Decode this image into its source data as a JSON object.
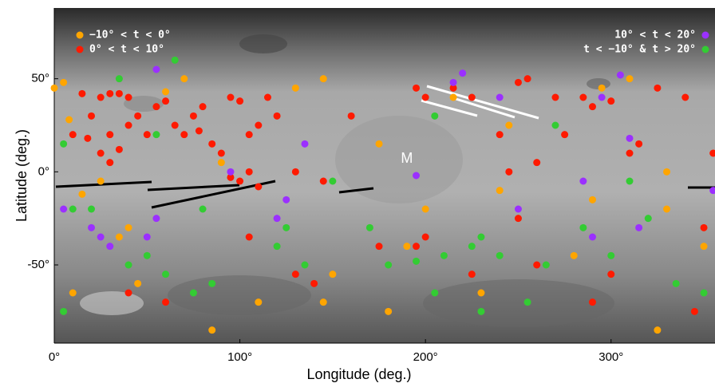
{
  "chart_data": {
    "type": "scatter",
    "xlabel": "Longitude (deg.)",
    "ylabel": "Latitude (deg.)",
    "annotation": "M",
    "annotation_x": 190,
    "annotation_y": 7,
    "xlim": [
      0,
      356
    ],
    "ylim": [
      -92,
      88
    ],
    "xticks": [
      {
        "value": 0,
        "label": "0°"
      },
      {
        "value": 100,
        "label": "100°"
      },
      {
        "value": 200,
        "label": "200°"
      },
      {
        "value": 300,
        "label": "300°"
      }
    ],
    "yticks": [
      {
        "value": 50,
        "label": "50°"
      },
      {
        "value": 0,
        "label": "0°"
      },
      {
        "value": -50,
        "label": "-50°"
      }
    ],
    "series": [
      {
        "name": "−10° < t < 0°",
        "color": "#ffa500",
        "legend": "upper left",
        "x": [
          5,
          0,
          8,
          15,
          25,
          35,
          40,
          60,
          70,
          90,
          130,
          145,
          175,
          190,
          200,
          215,
          240,
          245,
          290,
          295,
          310,
          330,
          350,
          10,
          45,
          110,
          150,
          180,
          230,
          280,
          325,
          85,
          145,
          330
        ],
        "values": [
          48,
          45,
          28,
          -12,
          -5,
          -35,
          -30,
          43,
          50,
          5,
          45,
          50,
          15,
          -40,
          -20,
          40,
          -10,
          25,
          -15,
          45,
          50,
          0,
          -40,
          -65,
          -60,
          -70,
          -55,
          -75,
          -65,
          -45,
          -85,
          -85,
          -70,
          -20
        ]
      },
      {
        "name": "0° < t < 10°",
        "color": "#ff1a00",
        "legend": "upper left",
        "x": [
          15,
          25,
          30,
          35,
          40,
          45,
          20,
          10,
          18,
          25,
          30,
          35,
          40,
          50,
          55,
          60,
          65,
          70,
          75,
          78,
          80,
          85,
          90,
          95,
          100,
          105,
          110,
          115,
          120,
          100,
          105,
          110,
          95,
          130,
          145,
          160,
          195,
          200,
          215,
          225,
          250,
          255,
          270,
          275,
          285,
          290,
          300,
          310,
          315,
          325,
          340,
          350,
          355,
          260,
          245,
          250,
          200,
          195,
          225,
          260,
          130,
          140,
          40,
          60,
          300,
          290,
          345,
          105,
          175,
          240,
          30
        ],
        "values": [
          42,
          40,
          42,
          42,
          40,
          30,
          30,
          20,
          18,
          10,
          5,
          12,
          25,
          20,
          35,
          38,
          25,
          20,
          30,
          22,
          35,
          15,
          10,
          40,
          38,
          20,
          25,
          40,
          30,
          -5,
          0,
          -8,
          -3,
          0,
          -5,
          30,
          45,
          40,
          45,
          40,
          48,
          50,
          40,
          20,
          40,
          35,
          38,
          10,
          15,
          45,
          40,
          -30,
          10,
          5,
          0,
          -25,
          -35,
          -40,
          -55,
          -50,
          -55,
          -60,
          -65,
          -70,
          -55,
          -70,
          -75,
          -35,
          -40,
          20,
          20
        ]
      },
      {
        "name": "10° < t < 20°",
        "color": "#9b30ff",
        "legend": "upper right",
        "x": [
          220,
          215,
          5,
          25,
          30,
          55,
          125,
          135,
          240,
          250,
          285,
          295,
          310,
          315,
          20,
          55,
          95,
          120,
          195,
          305,
          355,
          50,
          290
        ],
        "values": [
          53,
          48,
          -20,
          -35,
          -40,
          -25,
          -15,
          15,
          40,
          -20,
          -5,
          40,
          18,
          -30,
          -30,
          55,
          0,
          -25,
          -2,
          52,
          -10,
          -35,
          -35
        ]
      },
      {
        "name": "t < −10° & t > 20°",
        "color": "#33cc33",
        "legend": "upper right",
        "x": [
          35,
          20,
          10,
          5,
          40,
          50,
          60,
          80,
          75,
          85,
          120,
          125,
          135,
          150,
          170,
          180,
          195,
          205,
          210,
          225,
          230,
          240,
          255,
          265,
          270,
          285,
          300,
          310,
          320,
          335,
          350,
          55,
          65,
          205,
          230,
          5
        ],
        "values": [
          50,
          -20,
          -20,
          15,
          -50,
          -45,
          -55,
          -20,
          -65,
          -60,
          -40,
          -30,
          -50,
          -5,
          -30,
          -50,
          -48,
          -65,
          -45,
          -40,
          -35,
          -45,
          -70,
          -50,
          25,
          -30,
          -45,
          -5,
          -25,
          -60,
          -65,
          20,
          60,
          30,
          -75,
          -75
        ]
      }
    ]
  }
}
